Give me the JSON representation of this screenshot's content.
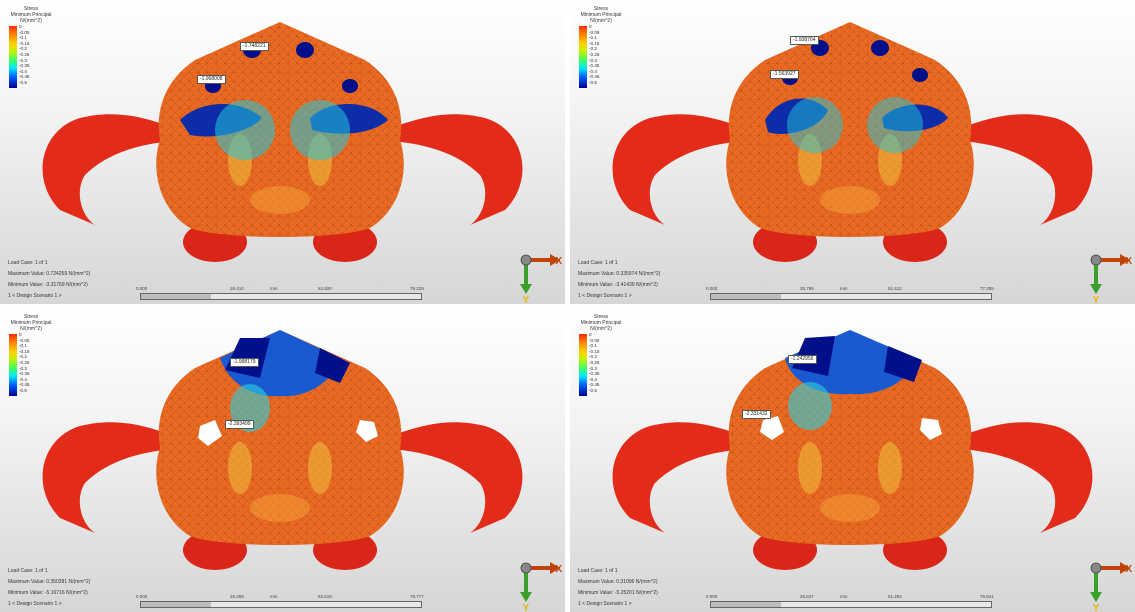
{
  "legend": {
    "title": [
      "Stress",
      "Minimum Principal",
      "N/(mm^2)"
    ],
    "ticks": [
      "0",
      "-0.05",
      "-0.1",
      "-0.15",
      "-0.2",
      "-0.25",
      "-0.3",
      "-0.35",
      "-0.4",
      "-0.45",
      "-0.5"
    ]
  },
  "axes": {
    "x": "X",
    "y": "Y"
  },
  "panels": [
    {
      "load_case": "Load Case:  1 of 1",
      "max": "Maximum Value: 0.724259 N/(mm^2)",
      "min": "Minimum Value: -3.31769 N/(mm^2)",
      "scenario": "1 < Design Scenario 1 >",
      "scale": [
        "0.000",
        "26.410",
        "mm",
        "52.820",
        "79.229"
      ],
      "tags": [
        "-1.748221",
        "-1.968008"
      ]
    },
    {
      "load_case": "Load Case:  1 of 1",
      "max": "Maximum Value: 0.335974 N/(mm^2)",
      "min": "Minimum Value: -3.41439 N/(mm^2)",
      "scenario": "1 < Design Scenario 1 >",
      "scale": [
        "0.000",
        "25.795",
        "mm",
        "51.512",
        "77.285"
      ],
      "tags": [
        "-1.938764",
        "-1.563927"
      ]
    },
    {
      "load_case": "Load Case:  1 of 1",
      "max": "Maximum Value: 0.350281 N/(mm^2)",
      "min": "Minimum Value: -5.16716 N/(mm^2)",
      "scenario": "1 < Design Scenario 1 >",
      "scale": [
        "0.000",
        "26.259",
        "mm",
        "52.518",
        "78.777"
      ],
      "tags": [
        "-1.998179",
        "-2.393499"
      ]
    },
    {
      "load_case": "Load Case:  1 of 1",
      "max": "Maximum Value: 0.31006 N/(mm^2)",
      "min": "Minimum Value: -5.25201 N/(mm^2)",
      "scenario": "1 < Design Scenario 1 >",
      "scale": [
        "0.000",
        "25.847",
        "mm",
        "51.294",
        "76.841"
      ],
      "tags": [
        "-1.242956",
        "-2.331432"
      ]
    }
  ]
}
